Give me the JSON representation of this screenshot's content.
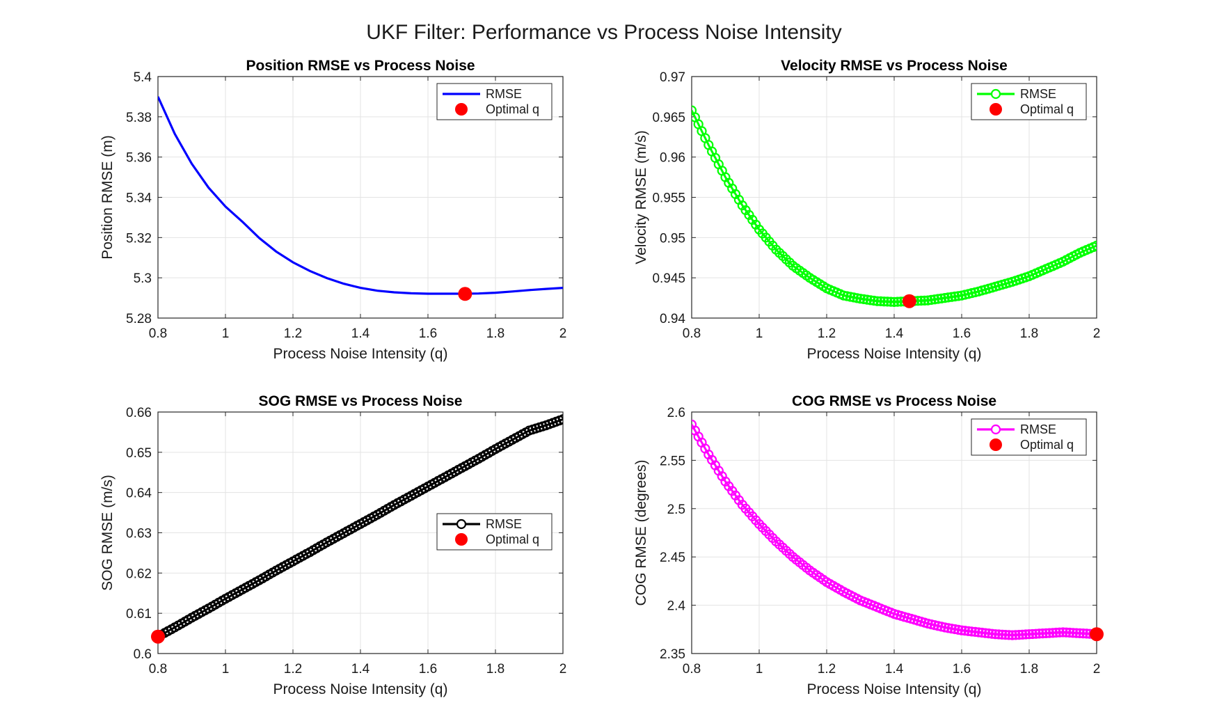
{
  "figure": {
    "title": "UKF Filter: Performance vs Process Noise Intensity"
  },
  "chart_data": [
    {
      "type": "line",
      "title": "Position RMSE vs Process Noise",
      "xlabel": "Process Noise Intensity (q)",
      "ylabel": "Position RMSE (m)",
      "xlim": [
        0.8,
        2
      ],
      "ylim": [
        5.28,
        5.4
      ],
      "xticks": [
        "0.8",
        "1",
        "1.2",
        "1.4",
        "1.6",
        "1.8",
        "2"
      ],
      "yticks": [
        "5.28",
        "5.3",
        "5.32",
        "5.34",
        "5.36",
        "5.38",
        "5.4"
      ],
      "grid": true,
      "legend_position": "top-right",
      "series": [
        {
          "name": "RMSE",
          "color": "#0000ff",
          "marker": "none",
          "x": [
            0.8,
            0.85,
            0.9,
            0.95,
            1.0,
            1.05,
            1.1,
            1.15,
            1.2,
            1.25,
            1.3,
            1.35,
            1.4,
            1.45,
            1.5,
            1.55,
            1.6,
            1.65,
            1.7,
            1.75,
            1.8,
            1.85,
            1.9,
            1.95,
            2.0
          ],
          "y": [
            5.39,
            5.3715,
            5.3567,
            5.3448,
            5.3354,
            5.3279,
            5.3198,
            5.3131,
            5.3077,
            5.3034,
            5.2999,
            5.2971,
            5.295,
            5.2936,
            5.2928,
            5.2923,
            5.2921,
            5.2921,
            5.2921,
            5.2922,
            5.2926,
            5.2932,
            5.2939,
            5.2945,
            5.295
          ]
        },
        {
          "name": "Optimal q",
          "color": "#ff0000",
          "marker": "dot",
          "x": [
            1.71
          ],
          "y": [
            5.292
          ]
        }
      ]
    },
    {
      "type": "line",
      "title": "Velocity RMSE vs Process Noise",
      "xlabel": "Process Noise Intensity (q)",
      "ylabel": "Velocity RMSE (m/s)",
      "xlim": [
        0.8,
        2
      ],
      "ylim": [
        0.94,
        0.97
      ],
      "xticks": [
        "0.8",
        "1",
        "1.2",
        "1.4",
        "1.6",
        "1.8",
        "2"
      ],
      "yticks": [
        "0.94",
        "0.945",
        "0.95",
        "0.955",
        "0.96",
        "0.965",
        "0.97"
      ],
      "grid": true,
      "legend_position": "top-right",
      "series": [
        {
          "name": "RMSE",
          "color": "#00ff00",
          "marker": "circle",
          "x": [
            0.8,
            0.85,
            0.9,
            0.95,
            1.0,
            1.05,
            1.1,
            1.15,
            1.2,
            1.25,
            1.3,
            1.35,
            1.4,
            1.45,
            1.5,
            1.55,
            1.6,
            1.65,
            1.7,
            1.75,
            1.8,
            1.85,
            1.9,
            1.95,
            2.0
          ],
          "y": [
            0.9658,
            0.9615,
            0.9575,
            0.954,
            0.951,
            0.9485,
            0.9465,
            0.945,
            0.9437,
            0.9428,
            0.9424,
            0.9421,
            0.942,
            0.9421,
            0.9422,
            0.9425,
            0.9428,
            0.9433,
            0.9439,
            0.9445,
            0.9452,
            0.9461,
            0.947,
            0.9481,
            0.949
          ]
        },
        {
          "name": "Optimal q",
          "color": "#ff0000",
          "marker": "dot",
          "x": [
            1.445
          ],
          "y": [
            0.9421
          ]
        }
      ]
    },
    {
      "type": "line",
      "title": "SOG RMSE vs Process Noise",
      "xlabel": "Process Noise Intensity (q)",
      "ylabel": "SOG RMSE (m/s)",
      "xlim": [
        0.8,
        2
      ],
      "ylim": [
        0.6,
        0.66
      ],
      "xticks": [
        "0.8",
        "1",
        "1.2",
        "1.4",
        "1.6",
        "1.8",
        "2"
      ],
      "yticks": [
        "0.6",
        "0.61",
        "0.62",
        "0.63",
        "0.64",
        "0.65",
        "0.66"
      ],
      "grid": true,
      "legend_position": "east",
      "series": [
        {
          "name": "RMSE",
          "color": "#000000",
          "marker": "circle",
          "x": [
            0.8,
            0.85,
            0.9,
            0.95,
            1.0,
            1.05,
            1.1,
            1.15,
            1.2,
            1.25,
            1.3,
            1.35,
            1.4,
            1.45,
            1.5,
            1.55,
            1.6,
            1.65,
            1.7,
            1.75,
            1.8,
            1.85,
            1.9,
            1.95,
            2.0
          ],
          "y": [
            0.6042,
            0.6065,
            0.6089,
            0.6112,
            0.6136,
            0.6159,
            0.6182,
            0.6206,
            0.6229,
            0.6252,
            0.6276,
            0.6299,
            0.6322,
            0.6345,
            0.6369,
            0.6392,
            0.6415,
            0.6438,
            0.6461,
            0.6484,
            0.6508,
            0.6531,
            0.6554,
            0.6567,
            0.6582
          ]
        },
        {
          "name": "Optimal q",
          "color": "#ff0000",
          "marker": "dot",
          "x": [
            0.8
          ],
          "y": [
            0.6042
          ]
        }
      ]
    },
    {
      "type": "line",
      "title": "COG RMSE vs Process Noise",
      "xlabel": "Process Noise Intensity (q)",
      "ylabel": "COG RMSE (degrees)",
      "xlim": [
        0.8,
        2
      ],
      "ylim": [
        2.35,
        2.6
      ],
      "xticks": [
        "0.8",
        "1",
        "1.2",
        "1.4",
        "1.6",
        "1.8",
        "2"
      ],
      "yticks": [
        "2.35",
        "2.4",
        "2.45",
        "2.5",
        "2.55",
        "2.6"
      ],
      "grid": true,
      "legend_position": "top-right",
      "series": [
        {
          "name": "RMSE",
          "color": "#ff00ff",
          "marker": "circle",
          "x": [
            0.8,
            0.85,
            0.9,
            0.95,
            1.0,
            1.05,
            1.1,
            1.15,
            1.2,
            1.25,
            1.3,
            1.35,
            1.4,
            1.45,
            1.5,
            1.55,
            1.6,
            1.65,
            1.7,
            1.75,
            1.8,
            1.85,
            1.9,
            1.95,
            2.0
          ],
          "y": [
            2.587,
            2.556,
            2.528,
            2.504,
            2.484,
            2.466,
            2.45,
            2.436,
            2.424,
            2.414,
            2.405,
            2.398,
            2.391,
            2.386,
            2.381,
            2.377,
            2.374,
            2.372,
            2.37,
            2.369,
            2.37,
            2.371,
            2.372,
            2.371,
            2.37
          ]
        },
        {
          "name": "Optimal q",
          "color": "#ff0000",
          "marker": "dot",
          "x": [
            2.0
          ],
          "y": [
            2.37
          ]
        }
      ]
    }
  ]
}
